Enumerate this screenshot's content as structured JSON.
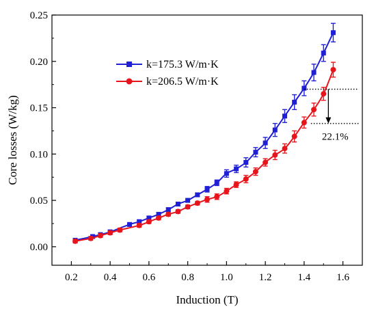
{
  "chart_data": {
    "type": "line",
    "xlabel": "Induction (T)",
    "ylabel": "Core losses (W/kg)",
    "xlim": [
      0.1,
      1.7
    ],
    "ylim": [
      -0.02,
      0.25
    ],
    "xticks": [
      "0.2",
      "0.4",
      "0.6",
      "0.8",
      "1.0",
      "1.2",
      "1.4",
      "1.6"
    ],
    "yticks": [
      "0.00",
      "0.05",
      "0.10",
      "0.15",
      "0.20",
      "0.25"
    ],
    "grid": false,
    "legend_position": "upper-left",
    "series": [
      {
        "name": "k=175.3 W/m·K",
        "color": "#1f1fd6",
        "marker": "square",
        "x": [
          0.22,
          0.31,
          0.35,
          0.4,
          0.5,
          0.55,
          0.6,
          0.65,
          0.7,
          0.75,
          0.8,
          0.85,
          0.9,
          0.95,
          1.0,
          1.05,
          1.1,
          1.15,
          1.2,
          1.25,
          1.3,
          1.35,
          1.4,
          1.45,
          1.5,
          1.55
        ],
        "y": [
          0.007,
          0.011,
          0.013,
          0.016,
          0.024,
          0.027,
          0.031,
          0.035,
          0.04,
          0.046,
          0.05,
          0.056,
          0.062,
          0.069,
          0.079,
          0.084,
          0.091,
          0.102,
          0.112,
          0.126,
          0.141,
          0.156,
          0.171,
          0.188,
          0.209,
          0.231
        ],
        "err": [
          0.002,
          0.002,
          0.002,
          0.002,
          0.002,
          0.002,
          0.002,
          0.002,
          0.002,
          0.002,
          0.002,
          0.002,
          0.003,
          0.003,
          0.004,
          0.004,
          0.005,
          0.005,
          0.006,
          0.007,
          0.007,
          0.008,
          0.008,
          0.009,
          0.009,
          0.01
        ]
      },
      {
        "name": "k=206.5 W/m·K",
        "color": "#e8141c",
        "marker": "circle",
        "x": [
          0.22,
          0.3,
          0.35,
          0.4,
          0.45,
          0.55,
          0.6,
          0.65,
          0.7,
          0.75,
          0.8,
          0.85,
          0.9,
          0.95,
          1.0,
          1.05,
          1.1,
          1.15,
          1.2,
          1.25,
          1.3,
          1.35,
          1.4,
          1.45,
          1.5,
          1.55
        ],
        "y": [
          0.006,
          0.009,
          0.012,
          0.015,
          0.018,
          0.023,
          0.027,
          0.031,
          0.035,
          0.038,
          0.043,
          0.047,
          0.051,
          0.054,
          0.06,
          0.067,
          0.073,
          0.081,
          0.091,
          0.099,
          0.106,
          0.119,
          0.134,
          0.148,
          0.165,
          0.191
        ],
        "err": [
          0.002,
          0.002,
          0.002,
          0.002,
          0.002,
          0.002,
          0.002,
          0.002,
          0.002,
          0.002,
          0.002,
          0.002,
          0.003,
          0.003,
          0.003,
          0.003,
          0.004,
          0.004,
          0.004,
          0.005,
          0.005,
          0.006,
          0.006,
          0.007,
          0.007,
          0.008
        ]
      }
    ],
    "annotation": {
      "text": "22.1%",
      "upper_y": 0.17,
      "lower_y": 0.133,
      "x_from": 1.4,
      "x_to": 1.68
    }
  }
}
